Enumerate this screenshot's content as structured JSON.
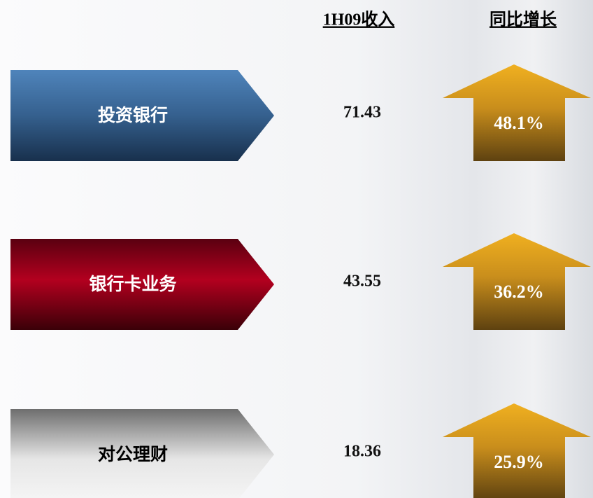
{
  "header": {
    "columns": [
      "1H09收入",
      "同比增长"
    ]
  },
  "rows": [
    {
      "label": "投资银行",
      "revenue": "71.43",
      "growth": "48.1%"
    },
    {
      "label": "银行卡业务",
      "revenue": "43.55",
      "growth": "36.2%"
    },
    {
      "label": "对公理财",
      "revenue": "18.36",
      "growth": "25.9%"
    }
  ]
}
